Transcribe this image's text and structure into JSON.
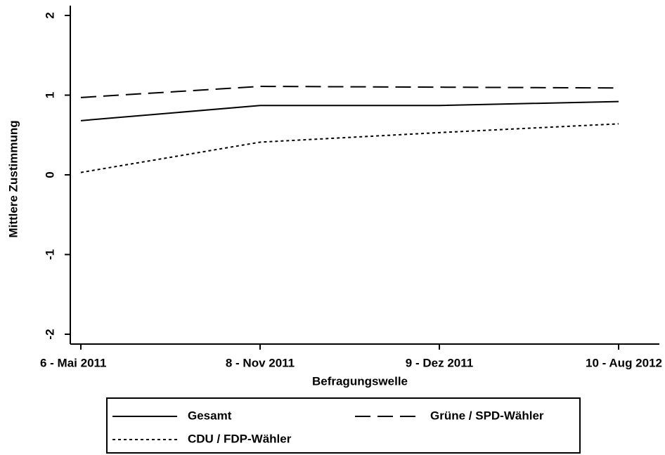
{
  "chart_data": {
    "type": "line",
    "categories": [
      "6 - Mai 2011",
      "8 - Nov 2011",
      "9 - Dez 2011",
      "10 - Aug 2012"
    ],
    "xlabel": "Befragungswelle",
    "ylabel": "Mittlere Zustimmung",
    "ylim": [
      -2,
      2
    ],
    "yticks": [
      -2,
      -1,
      0,
      1,
      2
    ],
    "grid": false,
    "series": [
      {
        "name": "Gesamt",
        "color": "#000000",
        "style": "solid",
        "values": [
          0.68,
          0.87,
          0.87,
          0.92
        ]
      },
      {
        "name": "Grüne / SPD-Wähler",
        "color": "#000000",
        "style": "dashed",
        "values": [
          0.97,
          1.11,
          1.1,
          1.09
        ]
      },
      {
        "name": "CDU / FDP-Wähler",
        "color": "#000000",
        "style": "dotted",
        "values": [
          0.03,
          0.41,
          0.53,
          0.64
        ]
      }
    ]
  }
}
